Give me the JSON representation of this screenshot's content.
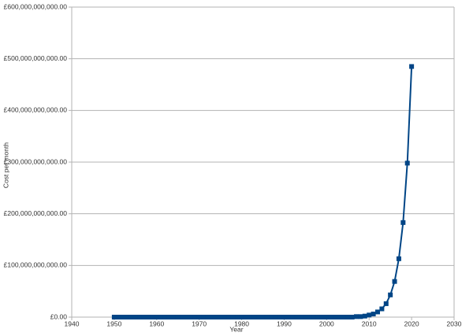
{
  "chart_data": {
    "type": "line",
    "x_label": "Year",
    "y_label": "Cost per month",
    "x": [
      1950,
      1951,
      1952,
      1953,
      1954,
      1955,
      1956,
      1957,
      1958,
      1959,
      1960,
      1961,
      1962,
      1963,
      1964,
      1965,
      1966,
      1967,
      1968,
      1969,
      1970,
      1971,
      1972,
      1973,
      1974,
      1975,
      1976,
      1977,
      1978,
      1979,
      1980,
      1981,
      1982,
      1983,
      1984,
      1985,
      1986,
      1987,
      1988,
      1989,
      1990,
      1991,
      1992,
      1993,
      1994,
      1995,
      1996,
      1997,
      1998,
      1999,
      2000,
      2001,
      2002,
      2003,
      2004,
      2005,
      2006,
      2007,
      2008,
      2009,
      2010,
      2011,
      2012,
      2013,
      2014,
      2015,
      2016,
      2017,
      2018,
      2019,
      2020
    ],
    "values": [
      0,
      0,
      0,
      0,
      0,
      0,
      0,
      0,
      0,
      0,
      0,
      0,
      0,
      0,
      0,
      0,
      0,
      0,
      0,
      0,
      0,
      0,
      0,
      0,
      0,
      0,
      0,
      0,
      0,
      0,
      0,
      0,
      0,
      0,
      0,
      0,
      0,
      0,
      0,
      0,
      0,
      0,
      0,
      0,
      0,
      0,
      0,
      0,
      0,
      0,
      0,
      0,
      0,
      0,
      0,
      0,
      0,
      1000000000,
      1000000000,
      2000000000,
      4000000000,
      6000000000,
      10000000000,
      16000000000,
      26000000000,
      43000000000,
      69000000000,
      113000000000,
      183000000000,
      298000000000,
      485000000000
    ],
    "color": "#004586",
    "xlim": [
      1940,
      2030
    ],
    "xticks": [
      1940,
      1950,
      1960,
      1970,
      1980,
      1990,
      2000,
      2010,
      2020,
      2030
    ],
    "ylim": [
      0,
      600000000000
    ],
    "yticks": [
      {
        "value": 0,
        "label": "£0.00"
      },
      {
        "value": 100000000000,
        "label": "£100,000,000,000.00"
      },
      {
        "value": 200000000000,
        "label": "£200,000,000,000.00"
      },
      {
        "value": 300000000000,
        "label": "£300,000,000,000.00"
      },
      {
        "value": 400000000000,
        "label": "£400,000,000,000.00"
      },
      {
        "value": 500000000000,
        "label": "£500,000,000,000.00"
      },
      {
        "value": 600000000000,
        "label": "£600,000,000,000.00"
      }
    ],
    "grid": true
  }
}
